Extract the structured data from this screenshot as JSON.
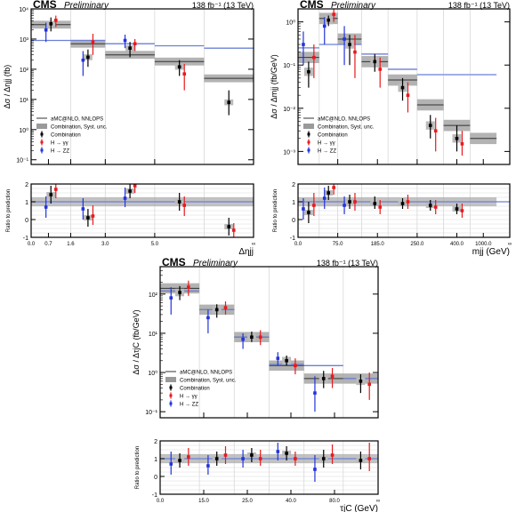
{
  "colors": {
    "combination": "#000000",
    "hgg": "#e8191c",
    "hzz": "#2233dd",
    "mc": "#6b7fd6",
    "band": "#9a9a9a",
    "grid": "#d8d8d8"
  },
  "chart_data": [
    {
      "type": "line",
      "cms": "CMS",
      "prelim": "Preliminary",
      "lumi": "138 fb⁻¹ (13 TeV)",
      "ylabel": "Δσ / Δηjj (fb)",
      "xlabel": "Δηjj",
      "ratio_ylabel": "Ratio to prediction",
      "ylog": true,
      "ylim": [
        0.07,
        10000
      ],
      "xlim": [
        0,
        9
      ],
      "xticks": [
        {
          "v": 0,
          "l": "0.0"
        },
        {
          "v": 0.7,
          "l": "0.7"
        },
        {
          "v": 1.6,
          "l": "1.6"
        },
        {
          "v": 3,
          "l": "3.0"
        },
        {
          "v": 5,
          "l": "5.0"
        },
        {
          "v": 9,
          "l": "∞"
        }
      ],
      "yticks": [
        {
          "v": 0.1,
          "l": "10⁻¹"
        },
        {
          "v": 1,
          "l": "10⁰"
        },
        {
          "v": 10,
          "l": "10¹"
        },
        {
          "v": 100,
          "l": "10²"
        },
        {
          "v": 1000,
          "l": "10³"
        },
        {
          "v": 10000,
          "l": "10⁴"
        }
      ],
      "ratio_ylim": [
        -1,
        2
      ],
      "ratio_yticks": [
        -1,
        0,
        1,
        2
      ],
      "legend": [
        "aMC@NLO, NNLOPS",
        "Combination, Syst. unc.",
        "Combination",
        "H → γγ",
        "H → ZZ"
      ],
      "bins": [
        0,
        1.6,
        3,
        5,
        7,
        9
      ],
      "prediction": [
        3000,
        700,
        300,
        180,
        50
      ],
      "prediction_zz": [
        900,
        900,
        700,
        600,
        500
      ],
      "combination": [
        {
          "x": 0.8,
          "y": 3200,
          "lo": 1800,
          "hi": 5200
        },
        {
          "x": 2.3,
          "y": 250,
          "lo": 120,
          "hi": 450
        },
        {
          "x": 4,
          "y": 500,
          "lo": 250,
          "hi": 800
        },
        {
          "x": 6,
          "y": 120,
          "lo": 60,
          "hi": 200
        },
        {
          "x": 8,
          "y": 8,
          "lo": 3,
          "hi": 20
        }
      ],
      "hgg": [
        {
          "x": 1,
          "y": 4200,
          "lo": 2500,
          "hi": 6000
        },
        {
          "x": 2.5,
          "y": 800,
          "lo": 300,
          "hi": 1500
        },
        {
          "x": 4.2,
          "y": 700,
          "lo": 400,
          "hi": 1000
        },
        {
          "x": 6.2,
          "y": 70,
          "lo": 20,
          "hi": 150
        }
      ],
      "hzz": [
        {
          "x": 0.6,
          "y": 2000,
          "lo": 800,
          "hi": 3500
        },
        {
          "x": 2.1,
          "y": 200,
          "lo": 60,
          "hi": 400
        },
        {
          "x": 3.8,
          "y": 900,
          "lo": 500,
          "hi": 1400
        }
      ],
      "ratio_comb": [
        {
          "x": 0.8,
          "y": 1.4,
          "lo": 0.9,
          "hi": 1.9
        },
        {
          "x": 2.3,
          "y": 0.1,
          "lo": -0.4,
          "hi": 0.6
        },
        {
          "x": 4,
          "y": 1.6,
          "lo": 1.2,
          "hi": 2
        },
        {
          "x": 6,
          "y": 1,
          "lo": 0.5,
          "hi": 1.5
        },
        {
          "x": 8,
          "y": -0.4,
          "lo": -0.9,
          "hi": 0.1
        }
      ],
      "ratio_hgg": [
        {
          "x": 1,
          "y": 1.7,
          "lo": 1.2,
          "hi": 2
        },
        {
          "x": 2.5,
          "y": 0.2,
          "lo": -0.3,
          "hi": 0.8
        },
        {
          "x": 4.2,
          "y": 1.9,
          "lo": 1.5,
          "hi": 2
        },
        {
          "x": 6.2,
          "y": 0.8,
          "lo": 0.2,
          "hi": 1.3
        },
        {
          "x": 8.2,
          "y": -0.6,
          "lo": -1,
          "hi": -0.2
        }
      ],
      "ratio_hzz": [
        {
          "x": 0.6,
          "y": 0.7,
          "lo": 0.1,
          "hi": 1.3
        },
        {
          "x": 2.1,
          "y": 0.6,
          "lo": 0,
          "hi": 1.2
        },
        {
          "x": 3.8,
          "y": 1.2,
          "lo": 0.7,
          "hi": 1.8
        }
      ]
    },
    {
      "type": "line",
      "cms": "CMS",
      "prelim": "Preliminary",
      "lumi": "138 fb⁻¹ (13 TeV)",
      "ylabel": "Δσ / Δmjj (fb/GeV)",
      "xlabel": "mjj (GeV)",
      "ratio_ylabel": "Ratio to prediction",
      "ylog": true,
      "ylim": [
        0.0005,
        2
      ],
      "xlim": [
        0,
        8
      ],
      "xticks": [
        {
          "v": 0,
          "l": "0.0"
        },
        {
          "v": 1.5,
          "l": "75.0"
        },
        {
          "v": 3,
          "l": "185.0"
        },
        {
          "v": 4.5,
          "l": "250.0"
        },
        {
          "v": 6,
          "l": "400.0"
        },
        {
          "v": 7,
          "l": "1000.0"
        },
        {
          "v": 8,
          "l": "∞"
        }
      ],
      "yticks": [
        {
          "v": 0.001,
          "l": "10⁻³"
        },
        {
          "v": 0.01,
          "l": "10⁻²"
        },
        {
          "v": 0.1,
          "l": "10⁻¹"
        },
        {
          "v": 1,
          "l": "10⁰"
        }
      ],
      "ratio_ylim": [
        -1,
        2
      ],
      "ratio_yticks": [
        -1,
        0,
        1,
        2
      ],
      "legend": [
        "aMC@NLO, NNLOPS",
        "Combination, Syst. unc.",
        "Combination",
        "H → γγ",
        "H → ZZ"
      ],
      "bins": [
        0,
        0.8,
        1.5,
        2.4,
        3.4,
        4.5,
        5.5,
        6.5,
        7.5
      ],
      "prediction": [
        0.15,
        1.2,
        0.4,
        0.12,
        0.045,
        0.012,
        0.004,
        0.002
      ],
      "prediction_zz": [
        0.25,
        0.3,
        0.3,
        0.18,
        0.08,
        0.06,
        0.06,
        0.06
      ],
      "combination": [
        {
          "x": 0.4,
          "y": 0.07,
          "lo": 0.03,
          "hi": 0.12
        },
        {
          "x": 1.15,
          "y": 1.1,
          "lo": 0.8,
          "hi": 1.4
        },
        {
          "x": 1.95,
          "y": 0.3,
          "lo": 0.1,
          "hi": 0.5
        },
        {
          "x": 2.9,
          "y": 0.12,
          "lo": 0.07,
          "hi": 0.18
        },
        {
          "x": 3.95,
          "y": 0.03,
          "lo": 0.015,
          "hi": 0.05
        },
        {
          "x": 5,
          "y": 0.004,
          "lo": 0.002,
          "hi": 0.007
        },
        {
          "x": 6,
          "y": 0.002,
          "lo": 0.001,
          "hi": 0.004
        }
      ],
      "hgg": [
        {
          "x": 0.6,
          "y": 0.15,
          "lo": 0.05,
          "hi": 0.3
        },
        {
          "x": 1.35,
          "y": 1.5,
          "lo": 1,
          "hi": 2
        },
        {
          "x": 2.15,
          "y": 0.2,
          "lo": 0.05,
          "hi": 0.5
        },
        {
          "x": 3.1,
          "y": 0.08,
          "lo": 0.03,
          "hi": 0.15
        },
        {
          "x": 4.15,
          "y": 0.02,
          "lo": 0.008,
          "hi": 0.04
        },
        {
          "x": 5.2,
          "y": 0.003,
          "lo": 0.001,
          "hi": 0.006
        },
        {
          "x": 6.2,
          "y": 0.0015,
          "lo": 0.0008,
          "hi": 0.003
        }
      ],
      "hzz": [
        {
          "x": 0.2,
          "y": 0.3,
          "lo": 0.1,
          "hi": 0.6
        },
        {
          "x": 1,
          "y": 0.8,
          "lo": 0.3,
          "hi": 1.3
        },
        {
          "x": 1.75,
          "y": 0.4,
          "lo": 0.1,
          "hi": 0.8
        }
      ],
      "ratio_comb": [
        {
          "x": 0.4,
          "y": 0.4,
          "lo": -0.2,
          "hi": 1
        },
        {
          "x": 1.15,
          "y": 1.5,
          "lo": 1.1,
          "hi": 1.9
        },
        {
          "x": 1.95,
          "y": 1,
          "lo": 0.6,
          "hi": 1.4
        },
        {
          "x": 2.9,
          "y": 0.9,
          "lo": 0.6,
          "hi": 1.3
        },
        {
          "x": 3.95,
          "y": 0.9,
          "lo": 0.6,
          "hi": 1.2
        },
        {
          "x": 5,
          "y": 0.8,
          "lo": 0.5,
          "hi": 1.1
        },
        {
          "x": 6,
          "y": 0.6,
          "lo": 0.3,
          "hi": 0.9
        }
      ],
      "ratio_hgg": [
        {
          "x": 0.6,
          "y": 0.8,
          "lo": 0.2,
          "hi": 1.5
        },
        {
          "x": 1.35,
          "y": 1.8,
          "lo": 1.4,
          "hi": 2
        },
        {
          "x": 2.15,
          "y": 1,
          "lo": 0.5,
          "hi": 1.5
        },
        {
          "x": 3.1,
          "y": 0.7,
          "lo": 0.3,
          "hi": 1.1
        },
        {
          "x": 4.15,
          "y": 1,
          "lo": 0.6,
          "hi": 1.4
        },
        {
          "x": 5.2,
          "y": 0.7,
          "lo": 0.3,
          "hi": 1.1
        },
        {
          "x": 6.2,
          "y": 0.5,
          "lo": 0.1,
          "hi": 0.9
        }
      ],
      "ratio_hzz": [
        {
          "x": 0.2,
          "y": 0.6,
          "lo": 0,
          "hi": 1.2
        },
        {
          "x": 1,
          "y": 1.2,
          "lo": 0.6,
          "hi": 1.8
        },
        {
          "x": 1.75,
          "y": 0.8,
          "lo": 0.3,
          "hi": 1.3
        }
      ]
    },
    {
      "type": "line",
      "cms": "CMS",
      "prelim": "Preliminary",
      "lumi": "138 fb⁻¹ (13 TeV)",
      "ylabel": "Δσ / ΔτjC (fb/GeV)",
      "xlabel": "τjC (GeV)",
      "ratio_ylabel": "Ratio to prediction",
      "ylog": true,
      "ylim": [
        0.07,
        500
      ],
      "xlim": [
        0,
        5
      ],
      "xticks": [
        {
          "v": 0,
          "l": "0.0"
        },
        {
          "v": 1,
          "l": "15.0"
        },
        {
          "v": 2,
          "l": "25.0"
        },
        {
          "v": 3,
          "l": "40.0"
        },
        {
          "v": 4,
          "l": "80.0"
        },
        {
          "v": 5,
          "l": "∞"
        }
      ],
      "yticks": [
        {
          "v": 0.1,
          "l": "10⁻¹"
        },
        {
          "v": 1,
          "l": "10⁰"
        },
        {
          "v": 10,
          "l": "10¹"
        },
        {
          "v": 100,
          "l": "10²"
        }
      ],
      "ratio_ylim": [
        -1,
        2
      ],
      "ratio_yticks": [
        -1,
        0,
        1,
        2
      ],
      "legend": [
        "aMC@NLO, NNLOPS",
        "Combination, Syst. unc.",
        "Combination",
        "H → γγ",
        "H → ZZ"
      ],
      "bins": [
        0,
        0.9,
        1.7,
        2.5,
        3.3,
        4.2,
        5
      ],
      "prediction": [
        140,
        40,
        8,
        1.5,
        0.7,
        0.7
      ],
      "prediction_zz": [
        120,
        40,
        8,
        1.6,
        1.5,
        0.7
      ],
      "combination": [
        {
          "x": 0.45,
          "y": 110,
          "lo": 70,
          "hi": 160
        },
        {
          "x": 1.3,
          "y": 40,
          "lo": 25,
          "hi": 55
        },
        {
          "x": 2.1,
          "y": 8,
          "lo": 6,
          "hi": 11
        },
        {
          "x": 2.9,
          "y": 2,
          "lo": 1.5,
          "hi": 2.7
        },
        {
          "x": 3.75,
          "y": 0.7,
          "lo": 0.4,
          "hi": 1.1
        },
        {
          "x": 4.6,
          "y": 0.6,
          "lo": 0.3,
          "hi": 0.9
        }
      ],
      "hgg": [
        {
          "x": 0.65,
          "y": 150,
          "lo": 90,
          "hi": 220
        },
        {
          "x": 1.5,
          "y": 45,
          "lo": 30,
          "hi": 65
        },
        {
          "x": 2.3,
          "y": 8,
          "lo": 5,
          "hi": 12
        },
        {
          "x": 3.1,
          "y": 1.5,
          "lo": 0.9,
          "hi": 2.3
        },
        {
          "x": 3.95,
          "y": 0.8,
          "lo": 0.4,
          "hi": 1.3
        },
        {
          "x": 4.8,
          "y": 0.5,
          "lo": 0.2,
          "hi": 1
        }
      ],
      "hzz": [
        {
          "x": 0.25,
          "y": 80,
          "lo": 30,
          "hi": 150
        },
        {
          "x": 1.1,
          "y": 25,
          "lo": 10,
          "hi": 40
        },
        {
          "x": 1.9,
          "y": 7,
          "lo": 4,
          "hi": 10
        },
        {
          "x": 2.7,
          "y": 2.3,
          "lo": 1.5,
          "hi": 3.3
        },
        {
          "x": 3.55,
          "y": 0.3,
          "lo": 0.1,
          "hi": 0.8
        }
      ],
      "ratio_comb": [
        {
          "x": 0.45,
          "y": 0.9,
          "lo": 0.5,
          "hi": 1.3
        },
        {
          "x": 1.3,
          "y": 1,
          "lo": 0.6,
          "hi": 1.4
        },
        {
          "x": 2.1,
          "y": 1.2,
          "lo": 0.8,
          "hi": 1.6
        },
        {
          "x": 2.9,
          "y": 1.3,
          "lo": 0.9,
          "hi": 1.7
        },
        {
          "x": 3.75,
          "y": 1,
          "lo": 0.5,
          "hi": 1.5
        },
        {
          "x": 4.6,
          "y": 0.9,
          "lo": 0.4,
          "hi": 1.4
        }
      ],
      "ratio_hgg": [
        {
          "x": 0.65,
          "y": 1.1,
          "lo": 0.6,
          "hi": 1.6
        },
        {
          "x": 1.5,
          "y": 1.2,
          "lo": 0.7,
          "hi": 1.7
        },
        {
          "x": 2.3,
          "y": 1,
          "lo": 0.6,
          "hi": 1.5
        },
        {
          "x": 3.1,
          "y": 1,
          "lo": 0.6,
          "hi": 1.4
        },
        {
          "x": 3.95,
          "y": 1.2,
          "lo": 0.7,
          "hi": 1.8
        },
        {
          "x": 4.8,
          "y": 1,
          "lo": 0.3,
          "hi": 1.9
        }
      ],
      "ratio_hzz": [
        {
          "x": 0.25,
          "y": 0.7,
          "lo": 0.1,
          "hi": 1.4
        },
        {
          "x": 1.1,
          "y": 0.6,
          "lo": 0.1,
          "hi": 1.2
        },
        {
          "x": 1.9,
          "y": 1,
          "lo": 0.5,
          "hi": 1.5
        },
        {
          "x": 2.7,
          "y": 1.4,
          "lo": 0.9,
          "hi": 1.9
        },
        {
          "x": 3.55,
          "y": 0.4,
          "lo": -0.3,
          "hi": 1.2
        }
      ]
    }
  ]
}
